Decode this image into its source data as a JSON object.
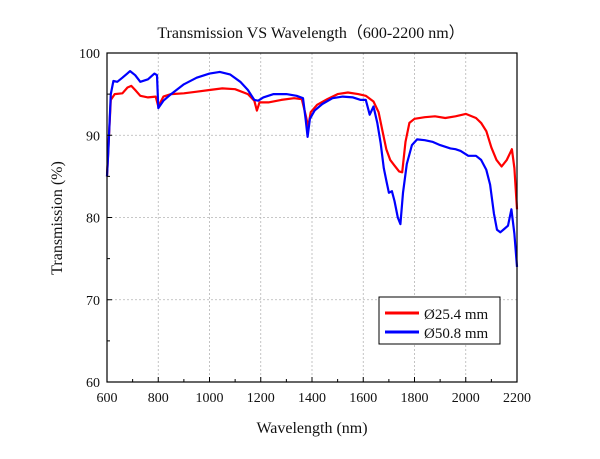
{
  "chart_data": {
    "type": "line",
    "title": "Transmission VS Wavelength（600-2200 nm）",
    "xlabel": "Wavelength (nm)",
    "ylabel": "Transmission (%)",
    "xlim": [
      600,
      2200
    ],
    "ylim": [
      60,
      100
    ],
    "xticks": [
      600,
      800,
      1000,
      1200,
      1400,
      1600,
      1800,
      2000,
      2200
    ],
    "yticks": [
      60,
      70,
      80,
      90,
      100
    ],
    "grid": true,
    "legend_position": "bottom-right",
    "series": [
      {
        "name": "Ø25.4 mm",
        "color": "#ff0000",
        "points": [
          [
            600,
            85.0
          ],
          [
            608,
            90.0
          ],
          [
            615,
            94.3
          ],
          [
            630,
            95.0
          ],
          [
            660,
            95.1
          ],
          [
            680,
            95.8
          ],
          [
            695,
            96.0
          ],
          [
            710,
            95.5
          ],
          [
            730,
            94.8
          ],
          [
            760,
            94.6
          ],
          [
            790,
            94.7
          ],
          [
            800,
            93.5
          ],
          [
            820,
            94.7
          ],
          [
            850,
            95.0
          ],
          [
            900,
            95.1
          ],
          [
            950,
            95.3
          ],
          [
            1000,
            95.5
          ],
          [
            1050,
            95.7
          ],
          [
            1100,
            95.6
          ],
          [
            1150,
            95.0
          ],
          [
            1175,
            94.2
          ],
          [
            1185,
            93.0
          ],
          [
            1195,
            94.0
          ],
          [
            1230,
            94.0
          ],
          [
            1280,
            94.3
          ],
          [
            1330,
            94.5
          ],
          [
            1360,
            94.4
          ],
          [
            1375,
            92.5
          ],
          [
            1385,
            91.0
          ],
          [
            1395,
            92.8
          ],
          [
            1420,
            93.7
          ],
          [
            1460,
            94.4
          ],
          [
            1500,
            95.0
          ],
          [
            1540,
            95.2
          ],
          [
            1580,
            95.0
          ],
          [
            1610,
            94.8
          ],
          [
            1640,
            94.1
          ],
          [
            1660,
            92.8
          ],
          [
            1675,
            90.5
          ],
          [
            1690,
            88.3
          ],
          [
            1705,
            87.0
          ],
          [
            1720,
            86.4
          ],
          [
            1740,
            85.6
          ],
          [
            1752,
            85.5
          ],
          [
            1765,
            89.2
          ],
          [
            1780,
            91.5
          ],
          [
            1800,
            92.0
          ],
          [
            1840,
            92.2
          ],
          [
            1880,
            92.3
          ],
          [
            1920,
            92.1
          ],
          [
            1960,
            92.3
          ],
          [
            2000,
            92.6
          ],
          [
            2040,
            92.1
          ],
          [
            2060,
            91.5
          ],
          [
            2080,
            90.5
          ],
          [
            2100,
            88.5
          ],
          [
            2120,
            87.0
          ],
          [
            2140,
            86.2
          ],
          [
            2160,
            87.0
          ],
          [
            2180,
            88.3
          ],
          [
            2190,
            86.0
          ],
          [
            2200,
            81.0
          ]
        ]
      },
      {
        "name": "Ø50.8 mm",
        "color": "#0000ff",
        "points": [
          [
            600,
            85.0
          ],
          [
            605,
            88.0
          ],
          [
            615,
            95.0
          ],
          [
            625,
            96.6
          ],
          [
            640,
            96.5
          ],
          [
            660,
            97.0
          ],
          [
            690,
            97.8
          ],
          [
            710,
            97.3
          ],
          [
            730,
            96.5
          ],
          [
            760,
            96.8
          ],
          [
            785,
            97.5
          ],
          [
            795,
            97.3
          ],
          [
            800,
            93.3
          ],
          [
            820,
            94.2
          ],
          [
            850,
            95.0
          ],
          [
            900,
            96.2
          ],
          [
            950,
            97.0
          ],
          [
            1000,
            97.5
          ],
          [
            1040,
            97.7
          ],
          [
            1080,
            97.4
          ],
          [
            1120,
            96.5
          ],
          [
            1150,
            95.5
          ],
          [
            1175,
            94.3
          ],
          [
            1190,
            94.2
          ],
          [
            1210,
            94.6
          ],
          [
            1250,
            95.0
          ],
          [
            1300,
            95.0
          ],
          [
            1340,
            94.8
          ],
          [
            1365,
            94.5
          ],
          [
            1375,
            92.0
          ],
          [
            1383,
            89.8
          ],
          [
            1392,
            92.0
          ],
          [
            1410,
            93.0
          ],
          [
            1440,
            93.8
          ],
          [
            1480,
            94.5
          ],
          [
            1520,
            94.7
          ],
          [
            1560,
            94.6
          ],
          [
            1590,
            94.3
          ],
          [
            1610,
            94.3
          ],
          [
            1625,
            92.5
          ],
          [
            1640,
            93.5
          ],
          [
            1655,
            91.5
          ],
          [
            1668,
            89.0
          ],
          [
            1680,
            86.0
          ],
          [
            1690,
            84.5
          ],
          [
            1700,
            83.0
          ],
          [
            1712,
            83.2
          ],
          [
            1722,
            82.0
          ],
          [
            1735,
            80.0
          ],
          [
            1745,
            79.2
          ],
          [
            1755,
            83.0
          ],
          [
            1770,
            86.5
          ],
          [
            1790,
            88.8
          ],
          [
            1810,
            89.5
          ],
          [
            1840,
            89.4
          ],
          [
            1870,
            89.2
          ],
          [
            1900,
            88.8
          ],
          [
            1940,
            88.4
          ],
          [
            1960,
            88.3
          ],
          [
            1980,
            88.1
          ],
          [
            2010,
            87.5
          ],
          [
            2040,
            87.5
          ],
          [
            2060,
            87.0
          ],
          [
            2080,
            85.8
          ],
          [
            2095,
            84.0
          ],
          [
            2110,
            80.5
          ],
          [
            2122,
            78.5
          ],
          [
            2135,
            78.2
          ],
          [
            2150,
            78.6
          ],
          [
            2165,
            79.0
          ],
          [
            2178,
            81.0
          ],
          [
            2190,
            78.0
          ],
          [
            2200,
            74.0
          ]
        ]
      }
    ]
  }
}
